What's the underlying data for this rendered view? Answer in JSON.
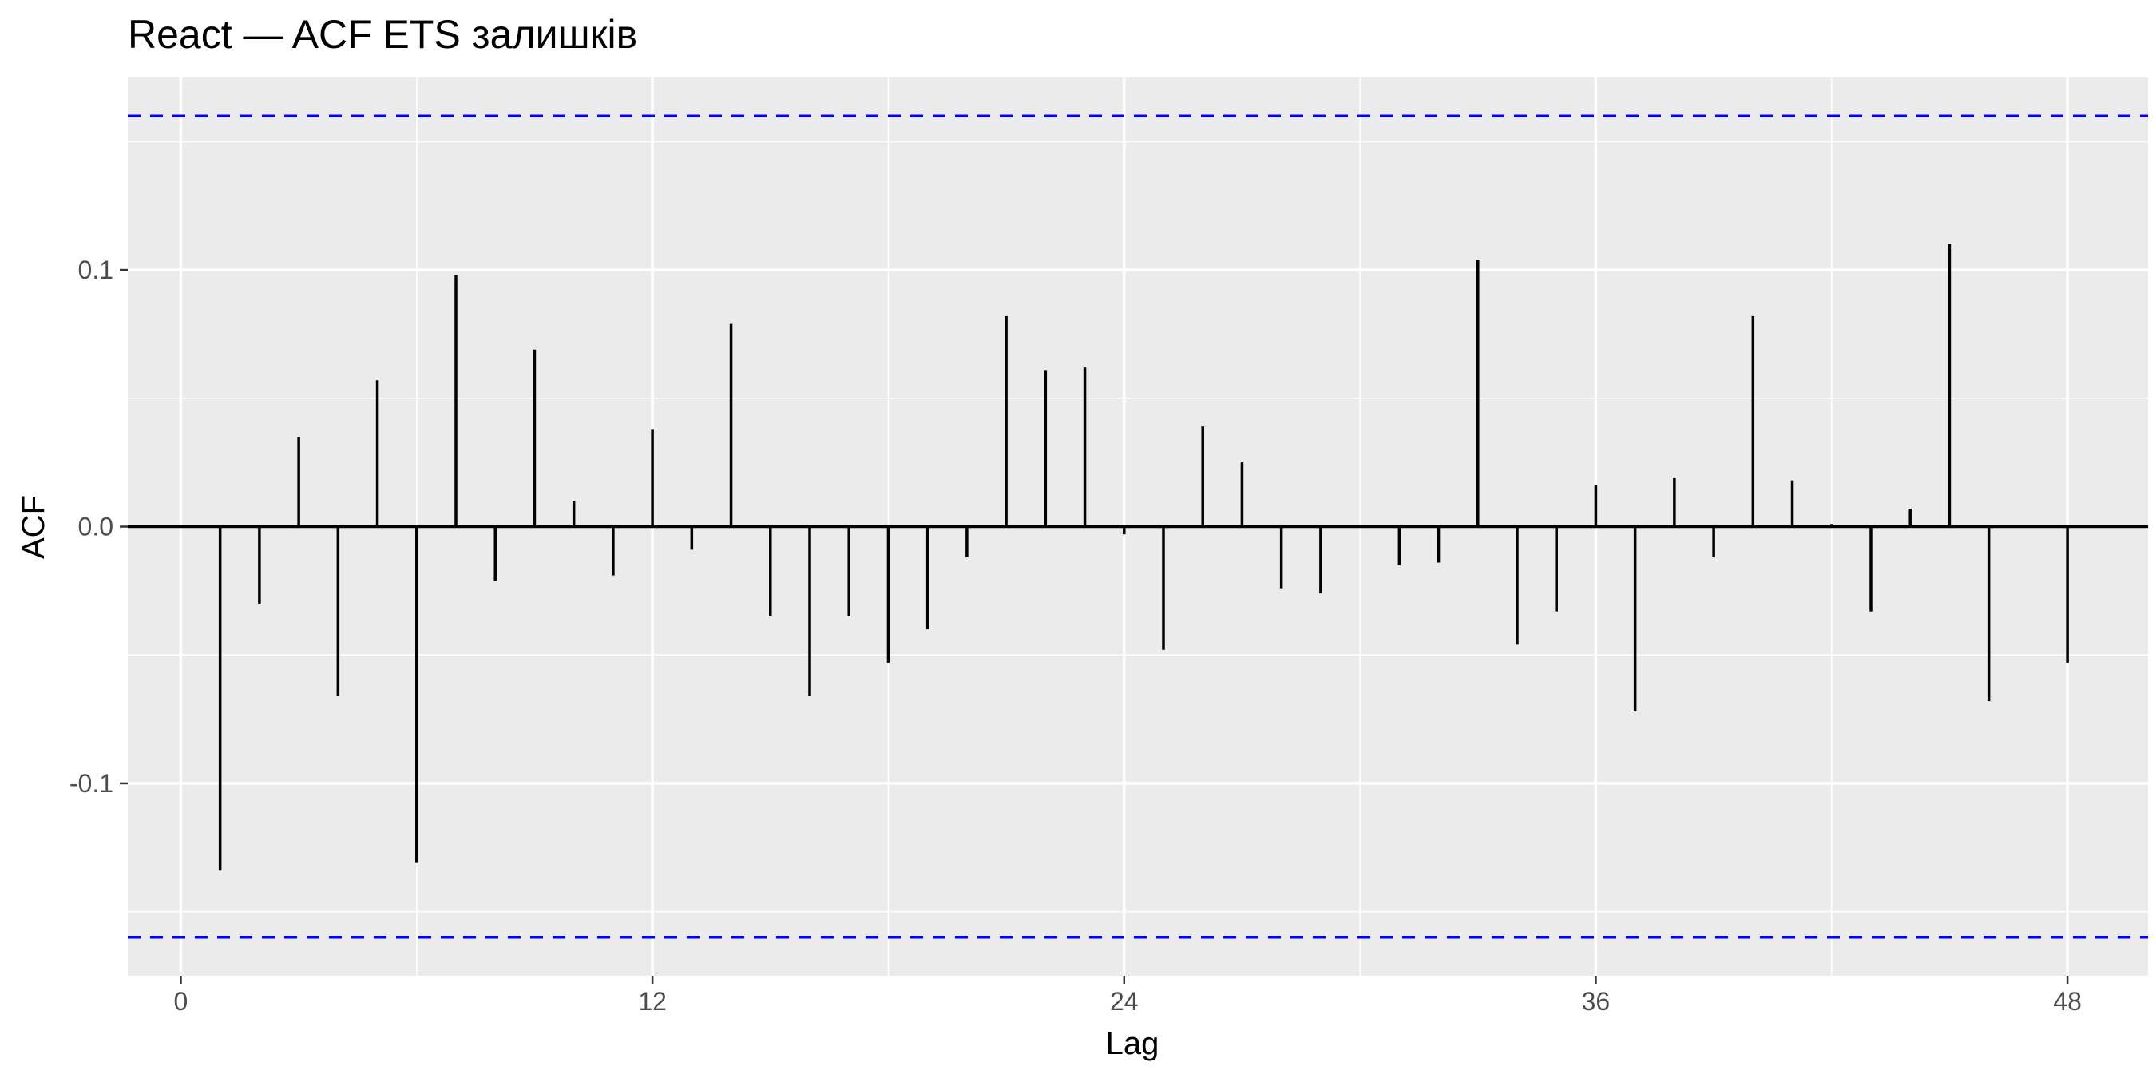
{
  "chart_data": {
    "type": "bar",
    "title": "React — ACF ETS залишків",
    "xlabel": "Lag",
    "ylabel": "ACF",
    "x_ticks": [
      0,
      12,
      24,
      36,
      48
    ],
    "y_ticks": [
      -0.1,
      0.0,
      0.1
    ],
    "y_tick_labels": [
      "-0.1",
      "0.0",
      "0.1"
    ],
    "xlim": [
      -1.35,
      50.05
    ],
    "ylim": [
      -0.175,
      0.175
    ],
    "grid": true,
    "confidence_bounds": [
      -0.16,
      0.16
    ],
    "lags": [
      1,
      2,
      3,
      4,
      5,
      6,
      7,
      8,
      9,
      10,
      11,
      12,
      13,
      14,
      15,
      16,
      17,
      18,
      19,
      20,
      21,
      22,
      23,
      24,
      25,
      26,
      27,
      28,
      29,
      30,
      31,
      32,
      33,
      34,
      35,
      36,
      37,
      38,
      39,
      40,
      41,
      42,
      43,
      44,
      45,
      46,
      47,
      48
    ],
    "values": [
      -0.134,
      -0.03,
      0.035,
      -0.066,
      0.057,
      -0.131,
      0.098,
      -0.021,
      0.069,
      0.01,
      -0.019,
      0.038,
      -0.009,
      0.079,
      -0.035,
      -0.066,
      -0.035,
      -0.053,
      -0.04,
      -0.012,
      0.082,
      0.061,
      0.062,
      -0.003,
      -0.048,
      0.039,
      0.025,
      -0.024,
      -0.026,
      0.0,
      -0.015,
      -0.014,
      0.104,
      -0.046,
      -0.033,
      0.016,
      -0.072,
      0.019,
      -0.012,
      0.082,
      0.018,
      0.001,
      -0.033,
      0.007,
      0.11,
      -0.068,
      0.0,
      -0.053
    ],
    "colors": {
      "panel_background": "#ebebeb",
      "grid_major": "#ffffff",
      "bar": "#000000",
      "zero_line": "#000000",
      "confidence_line": "#0000ff"
    }
  }
}
